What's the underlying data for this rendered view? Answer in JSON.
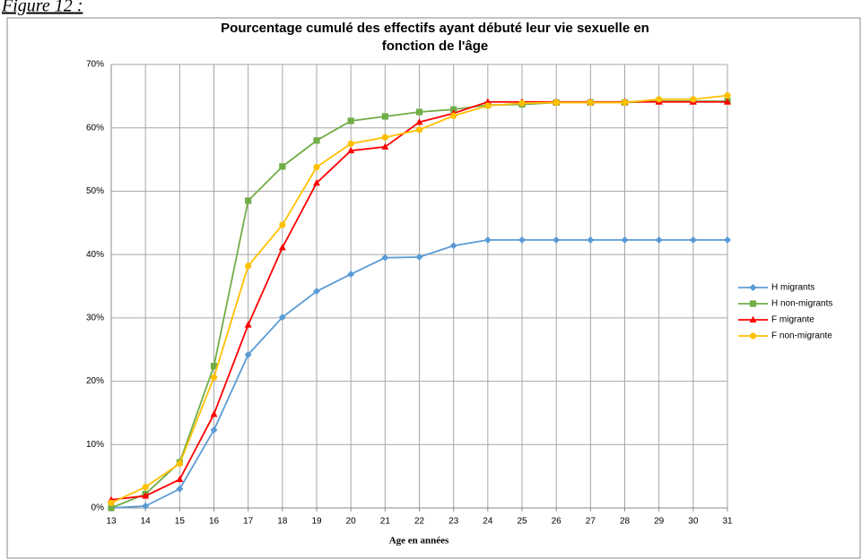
{
  "figure_label": "Figure 12 :",
  "chart_data": {
    "type": "line",
    "title": [
      "Pourcentage cumulé des effectifs ayant débuté leur vie sexuelle en",
      "fonction de l'âge"
    ],
    "x_label": "Age en années",
    "x": [
      13,
      14,
      15,
      16,
      17,
      18,
      19,
      20,
      21,
      22,
      23,
      24,
      25,
      26,
      27,
      28,
      29,
      30,
      31
    ],
    "xlim": [
      13,
      31
    ],
    "xticks": [
      13,
      14,
      15,
      16,
      17,
      18,
      19,
      20,
      21,
      22,
      23,
      24,
      25,
      26,
      27,
      28,
      29,
      30,
      31
    ],
    "ylim": [
      0,
      70
    ],
    "yticks": [
      {
        "value": 0,
        "label": "0%"
      },
      {
        "value": 10,
        "label": "10%"
      },
      {
        "value": 20,
        "label": "20%"
      },
      {
        "value": 30,
        "label": "30%"
      },
      {
        "value": 40,
        "label": "40%"
      },
      {
        "value": 50,
        "label": "50%"
      },
      {
        "value": 60,
        "label": "60%"
      },
      {
        "value": 70,
        "label": "70%"
      }
    ],
    "grid": true,
    "legend": "right",
    "series": [
      {
        "name": "H migrants",
        "color": "#5b9bd5",
        "marker": "diamond",
        "values": [
          0,
          0.3,
          3,
          12.3,
          24.2,
          30.1,
          34.2,
          36.9,
          39.5,
          39.6,
          41.4,
          42.3,
          42.3,
          42.3,
          42.3,
          42.3,
          42.3,
          42.3,
          42.3
        ]
      },
      {
        "name": "H non-migrants",
        "color": "#70ad47",
        "marker": "square",
        "values": [
          0,
          2.2,
          7.2,
          22.4,
          48.5,
          53.9,
          58,
          61.1,
          61.8,
          62.5,
          62.9,
          63.6,
          63.7,
          64,
          64,
          64,
          64.2,
          64.2,
          64.2
        ]
      },
      {
        "name": "F migrante",
        "color": "#ff0000",
        "marker": "triangle",
        "values": [
          1.3,
          1.9,
          4.5,
          14.8,
          28.9,
          41.1,
          51.3,
          56.4,
          57,
          60.9,
          62.3,
          64.1,
          64.1,
          64.1,
          64.1,
          64.1,
          64.1,
          64.1,
          64.1
        ]
      },
      {
        "name": "F non-migrante",
        "color": "#ffc000",
        "marker": "circle",
        "values": [
          0.8,
          3.3,
          7,
          20.6,
          38.2,
          44.7,
          53.8,
          57.5,
          58.5,
          59.7,
          61.9,
          63.5,
          63.9,
          64,
          64,
          64,
          64.5,
          64.5,
          65.1
        ]
      }
    ]
  }
}
